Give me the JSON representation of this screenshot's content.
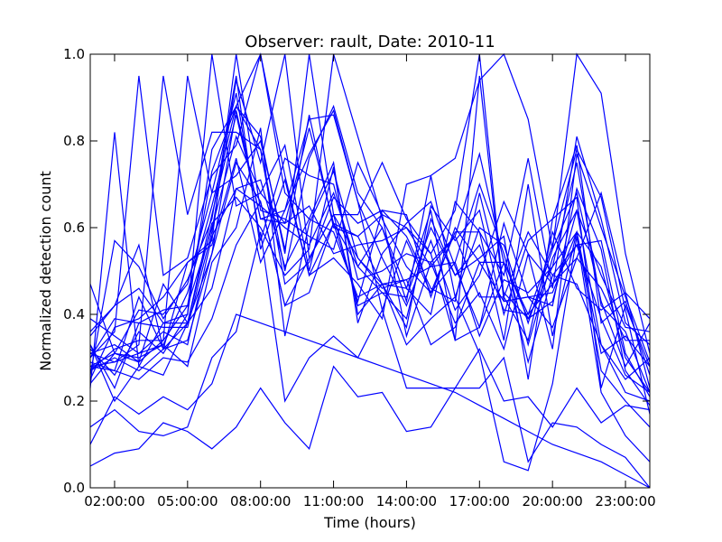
{
  "chart_data": {
    "type": "line",
    "title": "Observer: rault, Date: 2010-11",
    "xlabel": "Time (hours)",
    "ylabel": "Normalized detection count",
    "x_hours": [
      1,
      2,
      3,
      4,
      5,
      6,
      7,
      8,
      9,
      10,
      11,
      12,
      13,
      14,
      15,
      16,
      17,
      18,
      19,
      20,
      21,
      22,
      23,
      24
    ],
    "xlim": [
      1,
      24
    ],
    "ylim": [
      0,
      1
    ],
    "xticks": [
      {
        "value": 2,
        "label": "02:00:00"
      },
      {
        "value": 5,
        "label": "05:00:00"
      },
      {
        "value": 8,
        "label": "08:00:00"
      },
      {
        "value": 11,
        "label": "11:00:00"
      },
      {
        "value": 14,
        "label": "14:00:00"
      },
      {
        "value": 17,
        "label": "17:00:00"
      },
      {
        "value": 20,
        "label": "20:00:00"
      },
      {
        "value": 23,
        "label": "23:00:00"
      }
    ],
    "yticks": [
      {
        "value": 0.0,
        "label": "0.0"
      },
      {
        "value": 0.2,
        "label": "0.2"
      },
      {
        "value": 0.4,
        "label": "0.4"
      },
      {
        "value": 0.6,
        "label": "0.6"
      },
      {
        "value": 0.8,
        "label": "0.8"
      },
      {
        "value": 1.0,
        "label": "1.0"
      }
    ],
    "grid": false,
    "line_color": "#0000ff",
    "series": [
      {
        "values": [
          0.05,
          0.08,
          0.09,
          0.15,
          0.13,
          0.09,
          0.14,
          0.23,
          0.15,
          0.09,
          0.28,
          0.21,
          0.22,
          0.13,
          0.14,
          0.23,
          0.23,
          0.3,
          0.06,
          0.15,
          0.14,
          0.1,
          0.07,
          0.0
        ]
      },
      {
        "values": [
          0.1,
          0.21,
          0.17,
          0.21,
          0.18,
          0.24,
          0.4,
          0.38,
          0.36,
          0.34,
          0.32,
          0.3,
          0.28,
          0.26,
          0.24,
          0.22,
          0.19,
          0.16,
          0.13,
          0.1,
          0.08,
          0.06,
          0.03,
          0.0
        ]
      },
      {
        "values": [
          0.14,
          0.18,
          0.13,
          0.12,
          0.14,
          0.3,
          0.36,
          0.59,
          0.2,
          0.3,
          0.35,
          0.3,
          0.41,
          0.23,
          0.23,
          0.23,
          0.32,
          0.2,
          0.21,
          0.14,
          0.23,
          0.15,
          0.19,
          0.18
        ]
      },
      {
        "values": [
          0.24,
          0.31,
          0.3,
          0.33,
          0.28,
          0.52,
          0.6,
          0.83,
          0.35,
          0.61,
          0.73,
          0.53,
          0.47,
          0.33,
          0.39,
          0.44,
          0.31,
          0.06,
          0.04,
          0.24,
          0.58,
          0.22,
          0.12,
          0.06
        ]
      },
      {
        "values": [
          0.31,
          0.33,
          0.29,
          0.47,
          0.38,
          0.63,
          0.86,
          0.62,
          0.61,
          0.83,
          0.61,
          0.51,
          0.45,
          0.39,
          0.62,
          0.49,
          0.53,
          0.58,
          0.25,
          0.62,
          0.67,
          0.23,
          0.42,
          0.28
        ]
      },
      {
        "values": [
          0.28,
          0.27,
          0.25,
          0.3,
          0.29,
          0.39,
          0.56,
          0.66,
          0.42,
          0.45,
          0.61,
          0.58,
          0.63,
          0.35,
          0.52,
          0.38,
          0.45,
          0.32,
          0.54,
          0.32,
          0.77,
          0.6,
          0.44,
          0.29
        ]
      },
      {
        "values": [
          0.33,
          0.23,
          0.38,
          0.41,
          0.42,
          0.73,
          0.88,
          0.78,
          0.5,
          0.76,
          0.88,
          0.68,
          0.6,
          0.43,
          0.72,
          0.44,
          0.6,
          0.56,
          0.38,
          0.55,
          0.68,
          0.43,
          0.28,
          0.38
        ]
      },
      {
        "values": [
          0.33,
          0.2,
          0.28,
          0.38,
          0.38,
          0.46,
          0.69,
          0.65,
          0.6,
          0.56,
          0.68,
          0.51,
          0.6,
          0.46,
          0.64,
          0.34,
          0.37,
          0.61,
          0.44,
          0.37,
          0.53,
          0.46,
          0.34,
          0.34
        ]
      },
      {
        "values": [
          0.23,
          0.82,
          0.28,
          0.26,
          0.38,
          0.54,
          0.87,
          0.62,
          0.64,
          0.85,
          0.86,
          0.66,
          0.53,
          0.42,
          0.57,
          0.41,
          0.49,
          0.66,
          0.54,
          0.47,
          0.56,
          0.39,
          0.26,
          0.22
        ]
      },
      {
        "values": [
          0.3,
          0.36,
          0.95,
          0.49,
          0.53,
          0.72,
          0.79,
          1.0,
          0.68,
          0.62,
          0.75,
          0.38,
          0.54,
          0.61,
          0.66,
          0.51,
          0.37,
          0.52,
          0.29,
          0.49,
          0.56,
          0.57,
          0.31,
          0.21
        ]
      },
      {
        "values": [
          0.28,
          0.29,
          0.33,
          0.95,
          0.63,
          0.82,
          0.82,
          0.78,
          0.47,
          0.52,
          0.67,
          0.61,
          0.64,
          0.63,
          0.44,
          0.6,
          0.52,
          0.52,
          0.39,
          0.43,
          0.64,
          0.49,
          0.37,
          0.36
        ]
      },
      {
        "values": [
          0.27,
          0.32,
          0.34,
          0.34,
          0.95,
          0.68,
          0.72,
          0.8,
          0.55,
          0.86,
          0.6,
          0.58,
          0.47,
          0.46,
          0.4,
          0.66,
          0.59,
          0.34,
          0.7,
          0.35,
          0.59,
          0.31,
          0.35,
          0.28
        ]
      },
      {
        "values": [
          0.36,
          0.42,
          0.46,
          0.38,
          0.4,
          1.0,
          0.65,
          0.68,
          0.61,
          0.65,
          0.54,
          0.56,
          0.57,
          0.6,
          0.51,
          0.58,
          0.44,
          0.44,
          0.34,
          0.59,
          0.46,
          0.41,
          0.45,
          0.23
        ]
      },
      {
        "values": [
          0.29,
          0.27,
          0.44,
          0.32,
          0.52,
          0.57,
          1.0,
          0.64,
          0.62,
          0.58,
          0.55,
          0.75,
          0.63,
          0.6,
          0.54,
          0.34,
          0.95,
          0.43,
          0.44,
          0.42,
          0.69,
          0.55,
          0.27,
          0.19
        ]
      },
      {
        "values": [
          0.31,
          0.29,
          0.31,
          0.33,
          0.45,
          0.65,
          0.88,
          1.0,
          0.72,
          0.49,
          0.61,
          0.43,
          0.64,
          0.58,
          0.46,
          0.43,
          0.68,
          0.45,
          0.39,
          0.51,
          0.59,
          0.51,
          0.3,
          0.22
        ]
      },
      {
        "values": [
          0.3,
          0.39,
          0.38,
          0.37,
          0.37,
          0.59,
          0.94,
          0.75,
          1.0,
          0.53,
          0.63,
          0.53,
          0.46,
          0.48,
          0.33,
          0.37,
          0.52,
          0.43,
          0.44,
          0.45,
          0.59,
          0.27,
          0.2,
          0.14
        ]
      },
      {
        "values": [
          0.32,
          0.26,
          0.36,
          0.31,
          0.4,
          0.78,
          0.88,
          0.81,
          0.54,
          1.0,
          0.63,
          0.42,
          0.45,
          0.44,
          0.6,
          0.49,
          0.56,
          0.41,
          0.4,
          0.56,
          0.78,
          0.67,
          0.41,
          0.17
        ]
      },
      {
        "values": [
          0.27,
          0.3,
          0.27,
          0.32,
          0.38,
          0.61,
          0.67,
          0.6,
          0.49,
          0.55,
          1.0,
          0.81,
          0.62,
          0.51,
          0.45,
          0.52,
          0.35,
          0.48,
          0.45,
          0.51,
          0.75,
          0.42,
          0.36,
          0.22
        ]
      },
      {
        "values": [
          0.35,
          0.42,
          0.56,
          0.32,
          0.34,
          0.54,
          0.75,
          0.66,
          0.42,
          0.53,
          0.63,
          0.63,
          0.75,
          0.62,
          0.54,
          0.64,
          1.0,
          0.44,
          0.59,
          0.49,
          0.47,
          0.33,
          0.22,
          0.2
        ]
      },
      {
        "values": [
          0.26,
          0.57,
          0.51,
          0.39,
          0.48,
          0.62,
          0.95,
          0.55,
          0.71,
          0.49,
          0.53,
          0.47,
          0.39,
          0.7,
          0.72,
          0.76,
          0.94,
          1.0,
          0.85,
          0.55,
          1.0,
          0.91,
          0.54,
          0.31
        ]
      },
      {
        "values": [
          0.28,
          0.31,
          0.41,
          0.4,
          0.47,
          0.68,
          0.91,
          0.57,
          0.76,
          0.72,
          0.7,
          0.48,
          0.5,
          0.54,
          0.52,
          0.58,
          0.77,
          0.52,
          0.4,
          0.47,
          0.53,
          0.68,
          0.45,
          0.39
        ]
      },
      {
        "values": [
          0.25,
          0.37,
          0.39,
          0.44,
          0.52,
          0.56,
          0.76,
          0.52,
          0.64,
          0.77,
          0.87,
          0.66,
          0.41,
          0.57,
          0.45,
          0.59,
          0.59,
          0.49,
          0.76,
          0.46,
          0.81,
          0.62,
          0.38,
          0.33
        ]
      },
      {
        "values": [
          0.47,
          0.31,
          0.29,
          0.34,
          0.42,
          0.6,
          0.81,
          0.68,
          0.79,
          0.5,
          0.74,
          0.4,
          0.47,
          0.37,
          0.65,
          0.57,
          0.64,
          0.4,
          0.57,
          0.62,
          0.79,
          0.38,
          0.43,
          0.26
        ]
      },
      {
        "values": [
          0.39,
          0.35,
          0.31,
          0.36,
          0.33,
          0.58,
          0.69,
          0.71,
          0.51,
          0.62,
          0.59,
          0.44,
          0.47,
          0.48,
          0.51,
          0.52,
          0.7,
          0.54,
          0.33,
          0.53,
          0.64,
          0.33,
          0.25,
          0.3
        ]
      }
    ]
  }
}
